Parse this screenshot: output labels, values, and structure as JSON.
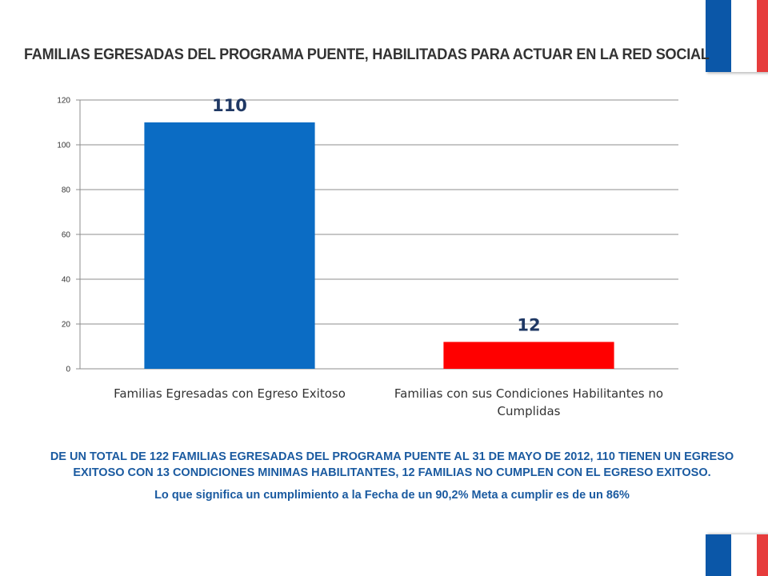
{
  "header": {
    "title": "FAMILIAS EGRESADAS DEL PROGRAMA PUENTE, HABILITADAS PARA ACTUAR EN LA RED SOCIAL"
  },
  "flag": {
    "icon": "chile-flag-stripes",
    "colors": [
      "#0b57a8",
      "#ffffff",
      "#e63c3c"
    ]
  },
  "chart_data": {
    "type": "bar",
    "title": "",
    "xlabel": "",
    "ylabel": "",
    "categories": [
      "Familias Egresadas con Egreso Exitoso",
      "Familias con sus Condiciones Habilitantes no Cumplidas"
    ],
    "values": [
      110,
      12
    ],
    "data_labels": [
      "110",
      "12"
    ],
    "bar_colors": [
      "#0b6cc4",
      "#ff0000"
    ],
    "ylim": [
      0,
      120
    ],
    "yticks": [
      0,
      20,
      40,
      60,
      80,
      100,
      120
    ],
    "grid": true,
    "legend": "none"
  },
  "caption": {
    "line1": "DE UN TOTAL DE  122 FAMILIAS EGRESADAS DEL PROGRAMA PUENTE AL 31 DE MAYO DE 2012, 110 TIENEN UN EGRESO EXITOSO CON 13 CONDICIONES MINIMAS HABILITANTES, 12 FAMILIAS NO CUMPLEN CON EL EGRESO EXITOSO.",
    "line2": "Lo que significa un cumplimiento a la Fecha de un 90,2% Meta a cumplir es de un 86%"
  }
}
